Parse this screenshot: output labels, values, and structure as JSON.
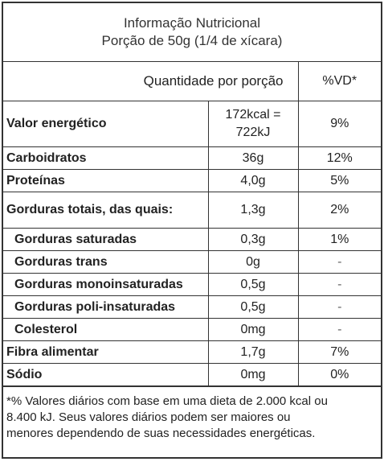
{
  "header": {
    "title": "Informação Nutricional",
    "portion": "Porção de 50g (1/4 de xícara)"
  },
  "columns": {
    "quantity": "Quantidade por porção",
    "dv": "%VD*"
  },
  "energy": {
    "label": "Valor energético",
    "kcal": "172kcal =",
    "kj": "722kJ",
    "dv": "9%"
  },
  "rows": [
    {
      "label": "Carboidratos",
      "amount": "36g",
      "dv": "12%"
    },
    {
      "label": "Proteínas",
      "amount": "4,0g",
      "dv": "5%"
    },
    {
      "label": "Gorduras totais, das quais:",
      "amount": "1,3g",
      "dv": "2%"
    },
    {
      "label": "Gorduras saturadas",
      "amount": "0,3g",
      "dv": "1%"
    },
    {
      "label": "Gorduras trans",
      "amount": "0g",
      "dv": "-"
    },
    {
      "label": "Gorduras monoinsaturadas",
      "amount": "0,5g",
      "dv": "-"
    },
    {
      "label": "Gorduras poli-insaturadas",
      "amount": "0,5g",
      "dv": "-"
    },
    {
      "label": "Colesterol",
      "amount": "0mg",
      "dv": "-"
    },
    {
      "label": "Fibra alimentar",
      "amount": "1,7g",
      "dv": "7%"
    },
    {
      "label": "Sódio",
      "amount": "0mg",
      "dv": "0%"
    }
  ],
  "footnote": {
    "line1": "*% Valores diários com base em uma dieta de 2.000 kcal ou",
    "line2": "8.400 kJ. Seus valores diários podem ser maiores ou",
    "line3": "menores dependendo de suas necessidades energéticas."
  }
}
